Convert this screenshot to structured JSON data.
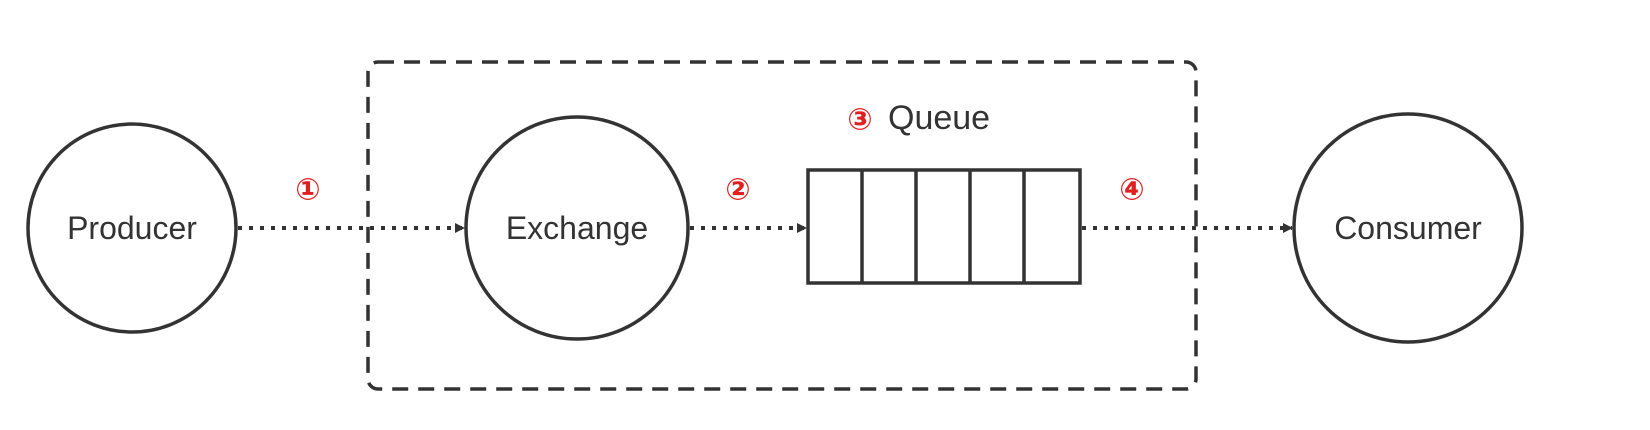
{
  "nodes": {
    "producer": "Producer",
    "exchange": "Exchange",
    "consumer": "Consumer"
  },
  "queue": {
    "label": "Queue",
    "step": "③"
  },
  "steps": {
    "producer_to_exchange": "①",
    "exchange_to_queue": "②",
    "queue_to_consumer": "④"
  },
  "colors": {
    "stroke": "#333333",
    "step_number": "#e02020"
  }
}
